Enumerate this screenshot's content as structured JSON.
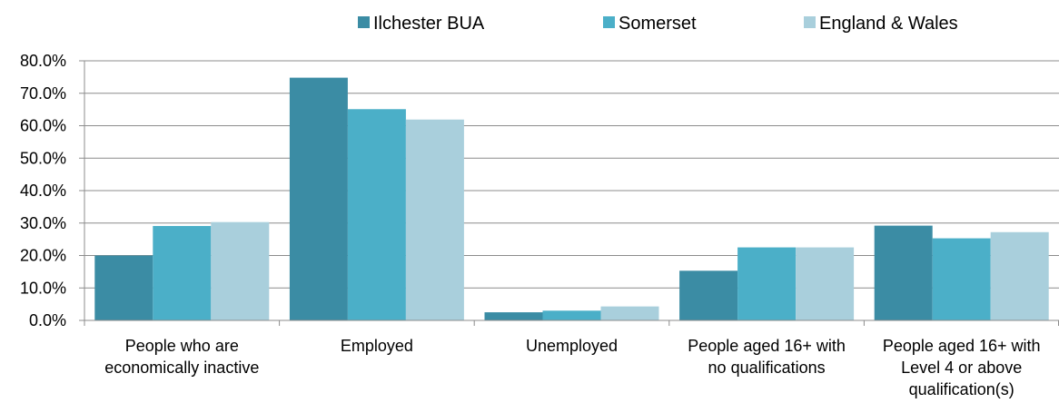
{
  "chart_data": {
    "type": "bar",
    "title": "",
    "xlabel": "",
    "ylabel": "",
    "categories": [
      [
        "People who are",
        "economically inactive"
      ],
      [
        "Employed"
      ],
      [
        "Unemployed"
      ],
      [
        "People aged 16+ with",
        "no qualifications"
      ],
      [
        "People aged 16+ with",
        "Level 4 or above",
        "qualification(s)"
      ]
    ],
    "series": [
      {
        "name": "Ilchester BUA",
        "color": "#3b8ca4",
        "values": [
          20.0,
          74.8,
          2.5,
          15.3,
          29.2
        ]
      },
      {
        "name": "Somerset",
        "color": "#4bafc8",
        "values": [
          29.1,
          65.1,
          3.0,
          22.5,
          25.3
        ]
      },
      {
        "name": "England & Wales",
        "color": "#a9cfdc",
        "values": [
          30.3,
          61.9,
          4.3,
          22.5,
          27.2
        ]
      }
    ],
    "ylim": [
      0,
      80
    ],
    "yticks": [
      "0.0%",
      "10.0%",
      "20.0%",
      "30.0%",
      "40.0%",
      "50.0%",
      "60.0%",
      "70.0%",
      "80.0%"
    ],
    "grid": true,
    "legend_position": "top"
  }
}
